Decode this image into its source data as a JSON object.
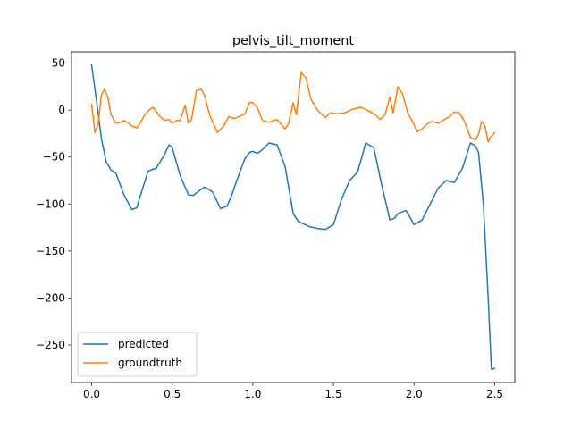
{
  "chart_data": {
    "type": "line",
    "title": "pelvis_tilt_moment",
    "xlabel": "",
    "ylabel": "",
    "xlim": [
      -0.125,
      2.625
    ],
    "ylim": [
      -290,
      62
    ],
    "xticks": [
      0.0,
      0.5,
      1.0,
      1.5,
      2.0,
      2.5
    ],
    "xtick_labels": [
      "0.0",
      "0.5",
      "1.0",
      "1.5",
      "2.0",
      "2.5"
    ],
    "yticks": [
      50,
      0,
      -50,
      -100,
      -150,
      -200,
      -250
    ],
    "ytick_labels": [
      "50",
      "0",
      "−50",
      "−100",
      "−150",
      "−200",
      "−250"
    ],
    "grid": false,
    "legend_position": "lower-left",
    "series": [
      {
        "name": "predicted",
        "color": "#1f77b4",
        "x": [
          0.0,
          0.03,
          0.06,
          0.09,
          0.12,
          0.15,
          0.2,
          0.25,
          0.28,
          0.3,
          0.35,
          0.38,
          0.4,
          0.45,
          0.48,
          0.5,
          0.55,
          0.6,
          0.63,
          0.65,
          0.7,
          0.75,
          0.8,
          0.84,
          0.87,
          0.9,
          0.95,
          0.98,
          1.0,
          1.03,
          1.06,
          1.1,
          1.15,
          1.2,
          1.25,
          1.28,
          1.3,
          1.35,
          1.4,
          1.45,
          1.5,
          1.55,
          1.6,
          1.65,
          1.7,
          1.75,
          1.8,
          1.85,
          1.88,
          1.9,
          1.95,
          2.0,
          2.05,
          2.1,
          2.15,
          2.2,
          2.25,
          2.3,
          2.35,
          2.38,
          2.4,
          2.43,
          2.46,
          2.48,
          2.5
        ],
        "y": [
          48,
          10,
          -30,
          -55,
          -64,
          -67,
          -90,
          -106,
          -104,
          -92,
          -65,
          -63,
          -62,
          -48,
          -37,
          -40,
          -70,
          -90,
          -91,
          -88,
          -82,
          -87,
          -105,
          -102,
          -90,
          -75,
          -52,
          -45,
          -44,
          -46,
          -42,
          -35,
          -37,
          -60,
          -110,
          -118,
          -120,
          -124,
          -126,
          -127,
          -122,
          -95,
          -75,
          -66,
          -35,
          -40,
          -80,
          -117,
          -115,
          -110,
          -107,
          -122,
          -117,
          -100,
          -83,
          -75,
          -77,
          -62,
          -35,
          -38,
          -45,
          -100,
          -200,
          -276,
          -275
        ]
      },
      {
        "name": "groundtruth",
        "color": "#ff7f0e",
        "x": [
          0.0,
          0.02,
          0.04,
          0.06,
          0.08,
          0.1,
          0.12,
          0.15,
          0.18,
          0.2,
          0.23,
          0.25,
          0.28,
          0.3,
          0.33,
          0.35,
          0.38,
          0.42,
          0.45,
          0.48,
          0.5,
          0.53,
          0.55,
          0.58,
          0.6,
          0.62,
          0.65,
          0.68,
          0.7,
          0.73,
          0.75,
          0.78,
          0.82,
          0.85,
          0.88,
          0.9,
          0.95,
          0.98,
          1.0,
          1.03,
          1.06,
          1.1,
          1.15,
          1.2,
          1.22,
          1.25,
          1.27,
          1.3,
          1.33,
          1.36,
          1.4,
          1.45,
          1.48,
          1.52,
          1.57,
          1.62,
          1.67,
          1.72,
          1.76,
          1.79,
          1.82,
          1.85,
          1.87,
          1.9,
          1.93,
          1.96,
          1.99,
          2.02,
          2.05,
          2.08,
          2.11,
          2.15,
          2.18,
          2.22,
          2.25,
          2.28,
          2.31,
          2.35,
          2.38,
          2.4,
          2.42,
          2.44,
          2.46,
          2.47,
          2.5
        ],
        "y": [
          6,
          -24,
          -15,
          16,
          22,
          14,
          -5,
          -14,
          -13,
          -11,
          -14,
          -17,
          -19,
          -14,
          -5,
          -1,
          3,
          -6,
          -11,
          -10,
          -14,
          -11,
          -11,
          5,
          -14,
          -10,
          21,
          22,
          16,
          -4,
          -12,
          -24,
          -17,
          -7,
          -9,
          -8,
          -4,
          8,
          8,
          2,
          -11,
          -13,
          -10,
          -20,
          -15,
          8,
          -5,
          40,
          34,
          12,
          0,
          -8,
          -3,
          -4,
          -3,
          1,
          3,
          -1,
          -5,
          -10,
          -5,
          14,
          -3,
          25,
          17,
          -3,
          -12,
          -23,
          -20,
          -15,
          -12,
          -14,
          -11,
          -7,
          -2,
          -3,
          -11,
          -29,
          -32,
          -26,
          -12,
          -17,
          -34,
          -30,
          -24
        ]
      }
    ]
  }
}
